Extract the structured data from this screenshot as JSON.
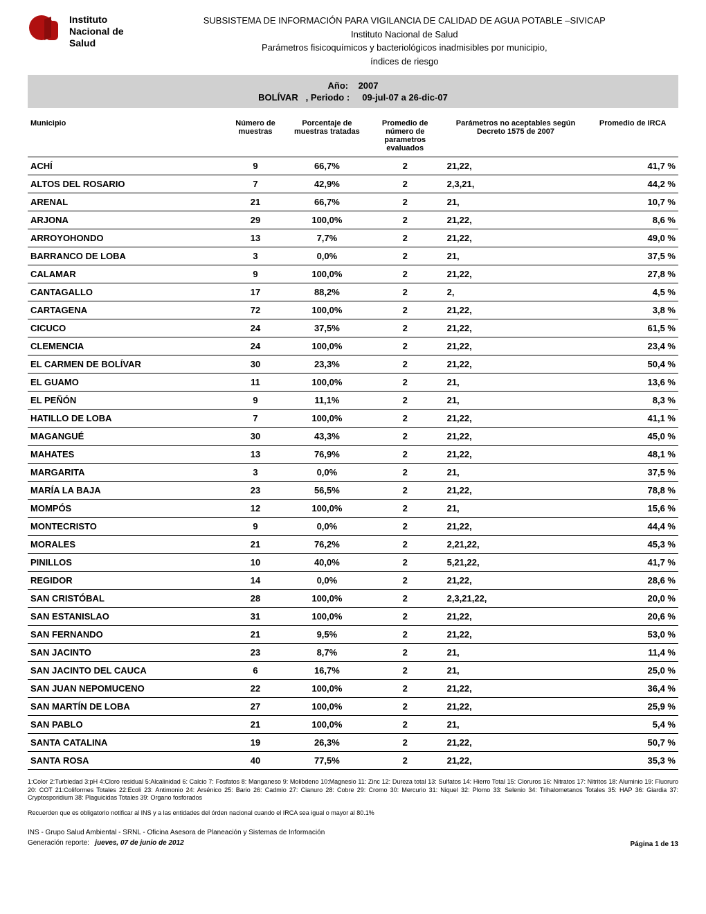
{
  "header": {
    "institution_line1": "Instituto",
    "institution_line2": "Nacional de",
    "institution_line3": "Salud",
    "title1": "SUBSISTEMA DE INFORMACIÓN PARA VIGILANCIA DE CALIDAD DE AGUA POTABLE –SIVICAP",
    "title2": "Instituto Nacional de Salud",
    "title3": "Parámetros fisicoquímicos y bacteriológicos inadmisibles por municipio,",
    "title4": "índices de riesgo",
    "year_label": "Año:",
    "year_value": "2007",
    "region": "BOLÍVAR",
    "period_label": ", Periodo :",
    "period_value": "09-jul-07  a  26-dic-07"
  },
  "columns": {
    "c1": "Municipio",
    "c2": "Número de muestras",
    "c3": "Porcentaje de muestras tratadas",
    "c4": "Promedio de número de parametros evaluados",
    "c5": "Parámetros no aceptables según Decreto 1575 de 2007",
    "c6": "Promedio de IRCA"
  },
  "rows": [
    {
      "muni": "ACHÍ",
      "num": "9",
      "pct": "66,7%",
      "prom": "2",
      "par": "21,22,",
      "irca": "41,7 %"
    },
    {
      "muni": "ALTOS DEL ROSARIO",
      "num": "7",
      "pct": "42,9%",
      "prom": "2",
      "par": "2,3,21,",
      "irca": "44,2 %"
    },
    {
      "muni": "ARENAL",
      "num": "21",
      "pct": "66,7%",
      "prom": "2",
      "par": "21,",
      "irca": "10,7 %"
    },
    {
      "muni": "ARJONA",
      "num": "29",
      "pct": "100,0%",
      "prom": "2",
      "par": "21,22,",
      "irca": "8,6 %"
    },
    {
      "muni": "ARROYOHONDO",
      "num": "13",
      "pct": "7,7%",
      "prom": "2",
      "par": "21,22,",
      "irca": "49,0 %"
    },
    {
      "muni": "BARRANCO DE LOBA",
      "num": "3",
      "pct": "0,0%",
      "prom": "2",
      "par": "21,",
      "irca": "37,5 %"
    },
    {
      "muni": "CALAMAR",
      "num": "9",
      "pct": "100,0%",
      "prom": "2",
      "par": "21,22,",
      "irca": "27,8 %"
    },
    {
      "muni": "CANTAGALLO",
      "num": "17",
      "pct": "88,2%",
      "prom": "2",
      "par": "2,",
      "irca": "4,5 %"
    },
    {
      "muni": "CARTAGENA",
      "num": "72",
      "pct": "100,0%",
      "prom": "2",
      "par": "21,22,",
      "irca": "3,8 %"
    },
    {
      "muni": "CICUCO",
      "num": "24",
      "pct": "37,5%",
      "prom": "2",
      "par": "21,22,",
      "irca": "61,5 %"
    },
    {
      "muni": "CLEMENCIA",
      "num": "24",
      "pct": "100,0%",
      "prom": "2",
      "par": "21,22,",
      "irca": "23,4 %"
    },
    {
      "muni": "EL CARMEN DE BOLÍVAR",
      "num": "30",
      "pct": "23,3%",
      "prom": "2",
      "par": "21,22,",
      "irca": "50,4 %"
    },
    {
      "muni": "EL GUAMO",
      "num": "11",
      "pct": "100,0%",
      "prom": "2",
      "par": "21,",
      "irca": "13,6 %"
    },
    {
      "muni": "EL PEÑÓN",
      "num": "9",
      "pct": "11,1%",
      "prom": "2",
      "par": "21,",
      "irca": "8,3 %"
    },
    {
      "muni": "HATILLO DE LOBA",
      "num": "7",
      "pct": "100,0%",
      "prom": "2",
      "par": "21,22,",
      "irca": "41,1 %"
    },
    {
      "muni": "MAGANGUÉ",
      "num": "30",
      "pct": "43,3%",
      "prom": "2",
      "par": "21,22,",
      "irca": "45,0 %"
    },
    {
      "muni": "MAHATES",
      "num": "13",
      "pct": "76,9%",
      "prom": "2",
      "par": "21,22,",
      "irca": "48,1 %"
    },
    {
      "muni": "MARGARITA",
      "num": "3",
      "pct": "0,0%",
      "prom": "2",
      "par": "21,",
      "irca": "37,5 %"
    },
    {
      "muni": "MARÍA LA BAJA",
      "num": "23",
      "pct": "56,5%",
      "prom": "2",
      "par": "21,22,",
      "irca": "78,8 %"
    },
    {
      "muni": "MOMPÓS",
      "num": "12",
      "pct": "100,0%",
      "prom": "2",
      "par": "21,",
      "irca": "15,6 %"
    },
    {
      "muni": "MONTECRISTO",
      "num": "9",
      "pct": "0,0%",
      "prom": "2",
      "par": "21,22,",
      "irca": "44,4 %"
    },
    {
      "muni": "MORALES",
      "num": "21",
      "pct": "76,2%",
      "prom": "2",
      "par": "2,21,22,",
      "irca": "45,3 %"
    },
    {
      "muni": "PINILLOS",
      "num": "10",
      "pct": "40,0%",
      "prom": "2",
      "par": "5,21,22,",
      "irca": "41,7 %"
    },
    {
      "muni": "REGIDOR",
      "num": "14",
      "pct": "0,0%",
      "prom": "2",
      "par": "21,22,",
      "irca": "28,6 %"
    },
    {
      "muni": "SAN CRISTÓBAL",
      "num": "28",
      "pct": "100,0%",
      "prom": "2",
      "par": "2,3,21,22,",
      "irca": "20,0 %"
    },
    {
      "muni": "SAN ESTANISLAO",
      "num": "31",
      "pct": "100,0%",
      "prom": "2",
      "par": "21,22,",
      "irca": "20,6 %"
    },
    {
      "muni": "SAN FERNANDO",
      "num": "21",
      "pct": "9,5%",
      "prom": "2",
      "par": "21,22,",
      "irca": "53,0 %"
    },
    {
      "muni": "SAN JACINTO",
      "num": "23",
      "pct": "8,7%",
      "prom": "2",
      "par": "21,",
      "irca": "11,4 %"
    },
    {
      "muni": "SAN JACINTO DEL CAUCA",
      "num": "6",
      "pct": "16,7%",
      "prom": "2",
      "par": "21,",
      "irca": "25,0 %"
    },
    {
      "muni": "SAN JUAN NEPOMUCENO",
      "num": "22",
      "pct": "100,0%",
      "prom": "2",
      "par": "21,22,",
      "irca": "36,4 %"
    },
    {
      "muni": "SAN MARTÍN DE LOBA",
      "num": "27",
      "pct": "100,0%",
      "prom": "2",
      "par": "21,22,",
      "irca": "25,9 %"
    },
    {
      "muni": "SAN PABLO",
      "num": "21",
      "pct": "100,0%",
      "prom": "2",
      "par": "21,",
      "irca": "5,4 %"
    },
    {
      "muni": "SANTA CATALINA",
      "num": "19",
      "pct": "26,3%",
      "prom": "2",
      "par": "21,22,",
      "irca": "50,7 %"
    },
    {
      "muni": "SANTA ROSA",
      "num": "40",
      "pct": "77,5%",
      "prom": "2",
      "par": "21,22,",
      "irca": "35,3 %"
    }
  ],
  "footnote1": "1:Color  2:Turbiedad   3:pH  4:Cloro residual  5:Alcalinidad  6: Calcio  7: Fosfatos  8: Manganeso  9: Molibdeno  10:Magnesio  11: Zinc  12: Dureza total  13: Sulfatos  14: Hierro Total  15: Cloruros  16: Nitratos  17: Nitritos  18: Aluminio  19: Fluoruro  20: COT  21:Coliformes Totales  22:Ecoli  23: Antimonio  24: Arsénico  25: Bario  26: Cadmio  27: Cianuro  28: Cobre  29: Cromo 30: Mercurio  31: Niquel  32: Plomo  33: Selenio  34: Trihalometanos Totales  35: HAP  36: Giardia  37: Cryptosporidium  38: Plaguicidas Totales  39: Organo fosforados",
  "footnote2": "Recuerden que es obligatorio notificar al INS y a las entidades del órden nacional cuando el IRCA sea igual o mayor al 80.1%",
  "footer": {
    "line1": "INS - Grupo Salud Ambiental - SRNL - Oficina Asesora de Planeación y Sistemas de Información",
    "line2_label": "Generación reporte:",
    "line2_value": "jueves, 07 de junio de 2012",
    "page": "Página 1 de 13"
  }
}
